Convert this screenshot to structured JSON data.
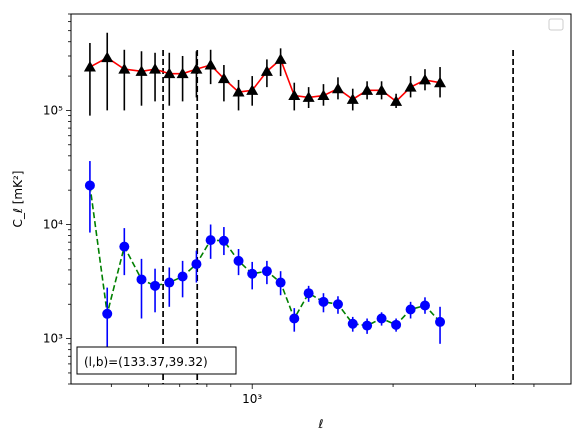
{
  "chart_data": {
    "type": "scatter",
    "title": "",
    "xlabel": "ℓ",
    "ylabel": "C_ℓ  [mK²]",
    "xscale": "log",
    "yscale": "log",
    "xlim": [
      410,
      4800
    ],
    "ylim": [
      400,
      700000
    ],
    "legend": {
      "placement": "top-right",
      "entries": []
    },
    "annotation": "(l,b)=(133.37,39.32)",
    "x_tick_labels": [
      "10³"
    ],
    "y_tick_labels": [
      "10³",
      "10⁴",
      "10⁵"
    ],
    "vertical_lines": [
      {
        "x": 645,
        "style": "dashed",
        "color": "#000000"
      },
      {
        "x": 763,
        "style": "dashed",
        "color": "#000000"
      },
      {
        "x": 3610,
        "style": "dashed",
        "color": "#000000"
      }
    ],
    "series": [
      {
        "marker": "triangle",
        "marker_color": "#000000",
        "line_color": "#ff0000",
        "line_style": "solid",
        "errorbar_color": "#000000",
        "points": [
          {
            "x": 450,
            "y": 240000,
            "lo": 90000,
            "hi": 390000
          },
          {
            "x": 490,
            "y": 290000,
            "lo": 100000,
            "hi": 480000
          },
          {
            "x": 533,
            "y": 230000,
            "lo": 100000,
            "hi": 340000
          },
          {
            "x": 580,
            "y": 220000,
            "lo": 110000,
            "hi": 330000
          },
          {
            "x": 620,
            "y": 230000,
            "lo": 120000,
            "hi": 320000
          },
          {
            "x": 665,
            "y": 210000,
            "lo": 110000,
            "hi": 320000
          },
          {
            "x": 710,
            "y": 210000,
            "lo": 120000,
            "hi": 300000
          },
          {
            "x": 760,
            "y": 230000,
            "lo": 130000,
            "hi": 330000
          },
          {
            "x": 815,
            "y": 250000,
            "lo": 170000,
            "hi": 340000
          },
          {
            "x": 870,
            "y": 190000,
            "lo": 120000,
            "hi": 250000
          },
          {
            "x": 935,
            "y": 145000,
            "lo": 100000,
            "hi": 185000
          },
          {
            "x": 1000,
            "y": 150000,
            "lo": 110000,
            "hi": 200000
          },
          {
            "x": 1075,
            "y": 220000,
            "lo": 160000,
            "hi": 280000
          },
          {
            "x": 1150,
            "y": 280000,
            "lo": 200000,
            "hi": 350000
          },
          {
            "x": 1230,
            "y": 135000,
            "lo": 100000,
            "hi": 175000
          },
          {
            "x": 1320,
            "y": 130000,
            "lo": 105000,
            "hi": 160000
          },
          {
            "x": 1420,
            "y": 135000,
            "lo": 110000,
            "hi": 170000
          },
          {
            "x": 1525,
            "y": 155000,
            "lo": 125000,
            "hi": 195000
          },
          {
            "x": 1640,
            "y": 125000,
            "lo": 100000,
            "hi": 155000
          },
          {
            "x": 1760,
            "y": 150000,
            "lo": 125000,
            "hi": 180000
          },
          {
            "x": 1890,
            "y": 150000,
            "lo": 125000,
            "hi": 180000
          },
          {
            "x": 2030,
            "y": 120000,
            "lo": 105000,
            "hi": 140000
          },
          {
            "x": 2180,
            "y": 160000,
            "lo": 130000,
            "hi": 200000
          },
          {
            "x": 2340,
            "y": 185000,
            "lo": 150000,
            "hi": 230000
          },
          {
            "x": 2520,
            "y": 175000,
            "lo": 130000,
            "hi": 240000
          }
        ]
      },
      {
        "marker": "circle",
        "marker_color": "#0000ff",
        "line_color": "#008000",
        "line_style": "dashed",
        "errorbar_color": "#0000ff",
        "points": [
          {
            "x": 450,
            "y": 22000,
            "lo": 8500,
            "hi": 36000
          },
          {
            "x": 490,
            "y": 1650,
            "lo": 550,
            "hi": 2800
          },
          {
            "x": 533,
            "y": 6400,
            "lo": 3600,
            "hi": 9300
          },
          {
            "x": 580,
            "y": 3300,
            "lo": 1500,
            "hi": 5000
          },
          {
            "x": 620,
            "y": 2900,
            "lo": 1700,
            "hi": 4100
          },
          {
            "x": 665,
            "y": 3100,
            "lo": 1900,
            "hi": 4200
          },
          {
            "x": 710,
            "y": 3500,
            "lo": 2300,
            "hi": 4800
          },
          {
            "x": 760,
            "y": 4500,
            "lo": 3100,
            "hi": 5900
          },
          {
            "x": 815,
            "y": 7300,
            "lo": 5000,
            "hi": 10000
          },
          {
            "x": 870,
            "y": 7200,
            "lo": 5400,
            "hi": 9500
          },
          {
            "x": 935,
            "y": 4800,
            "lo": 3600,
            "hi": 6100
          },
          {
            "x": 1000,
            "y": 3700,
            "lo": 2700,
            "hi": 4700
          },
          {
            "x": 1075,
            "y": 3900,
            "lo": 3000,
            "hi": 4800
          },
          {
            "x": 1150,
            "y": 3100,
            "lo": 2400,
            "hi": 3900
          },
          {
            "x": 1230,
            "y": 1500,
            "lo": 1150,
            "hi": 1850
          },
          {
            "x": 1320,
            "y": 2500,
            "lo": 2100,
            "hi": 2900
          },
          {
            "x": 1420,
            "y": 2100,
            "lo": 1700,
            "hi": 2500
          },
          {
            "x": 1525,
            "y": 2000,
            "lo": 1650,
            "hi": 2350
          },
          {
            "x": 1640,
            "y": 1350,
            "lo": 1150,
            "hi": 1550
          },
          {
            "x": 1760,
            "y": 1300,
            "lo": 1100,
            "hi": 1500
          },
          {
            "x": 1890,
            "y": 1500,
            "lo": 1300,
            "hi": 1700
          },
          {
            "x": 2030,
            "y": 1320,
            "lo": 1150,
            "hi": 1500
          },
          {
            "x": 2180,
            "y": 1800,
            "lo": 1500,
            "hi": 2100
          },
          {
            "x": 2340,
            "y": 1950,
            "lo": 1650,
            "hi": 2300
          },
          {
            "x": 2520,
            "y": 1400,
            "lo": 900,
            "hi": 1900
          }
        ]
      }
    ]
  }
}
